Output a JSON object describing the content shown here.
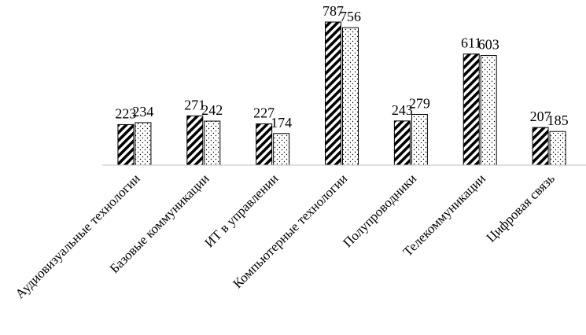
{
  "chart_data": {
    "type": "bar",
    "title": "",
    "xlabel": "",
    "ylabel": "",
    "ylim": [
      0,
      800
    ],
    "grid": false,
    "legend": "none",
    "categories": [
      "Аудиовизуальные технологии",
      "Базовые коммуникации",
      "ИТ в управлении",
      "Компьютерные технологии",
      "Полупроводники",
      "Телекоммуникации",
      "Цифровая связь"
    ],
    "series": [
      {
        "pattern": "hatched",
        "values": [
          223,
          271,
          227,
          787,
          243,
          611,
          207
        ]
      },
      {
        "pattern": "dotted",
        "values": [
          234,
          242,
          174,
          756,
          279,
          603,
          185
        ]
      }
    ]
  }
}
